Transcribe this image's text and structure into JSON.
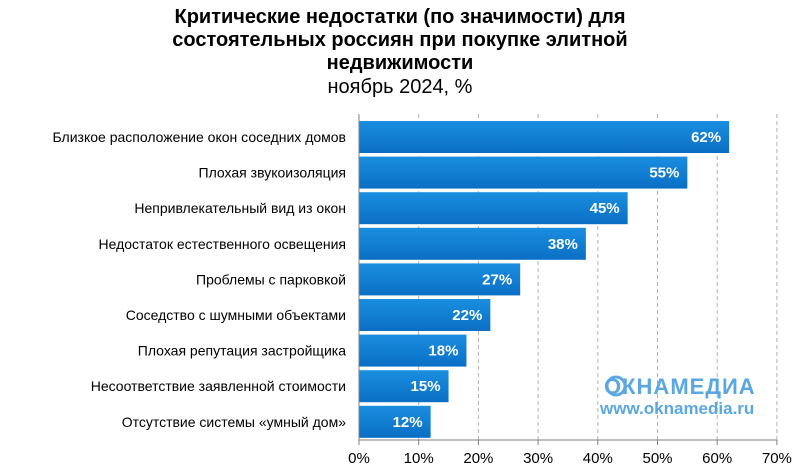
{
  "chart_data": {
    "type": "bar",
    "orientation": "horizontal",
    "title_lines": [
      "Критические недостатки (по значимости) для",
      "состоятельных россиян при покупке элитной",
      "недвижимости"
    ],
    "subtitle": "ноябрь 2024, %",
    "categories": [
      "Близкое расположение окон соседних домов",
      "Плохая звукоизоляция",
      "Непривлекательный вид из окон",
      "Недостаток естественного освещения",
      "Проблемы с парковкой",
      "Соседство с шумными объектами",
      "Плохая репутация застройщика",
      "Несоответствие заявленной стоимости",
      "Отсутствие системы «умный дом»"
    ],
    "values": [
      62,
      55,
      45,
      38,
      27,
      22,
      18,
      15,
      12
    ],
    "data_labels": [
      "62%",
      "55%",
      "45%",
      "38%",
      "27%",
      "22%",
      "18%",
      "15%",
      "12%"
    ],
    "xlim": [
      0,
      70
    ],
    "x_ticks": [
      0,
      10,
      20,
      30,
      40,
      50,
      60,
      70
    ],
    "x_tick_labels": [
      "0%",
      "10%",
      "20%",
      "30%",
      "40%",
      "50%",
      "60%",
      "70%"
    ],
    "grid": "vertical dashed",
    "legend": "none",
    "colors": {
      "bar_top": "#1a8ee0",
      "bar_bottom": "#0a6fc4",
      "grid": "#b0b0b0",
      "watermark": "#5aa7e2"
    }
  },
  "watermark": {
    "logo_text": "ОКНАМЕДИА",
    "url": "www.oknamedia.ru"
  }
}
